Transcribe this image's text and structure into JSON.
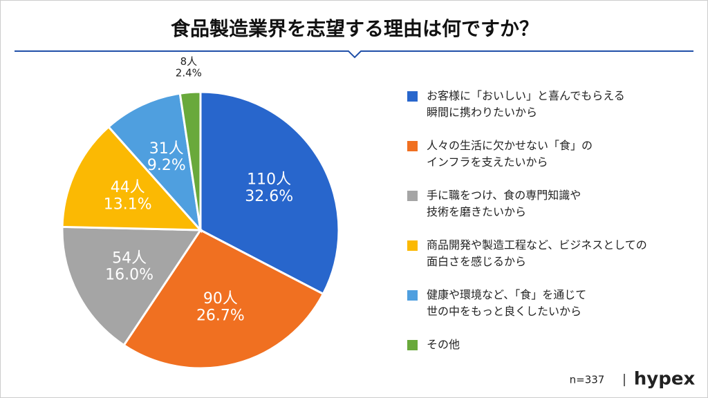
{
  "chart_data": {
    "type": "pie",
    "title": "食品製造業界を志望する理由は何ですか？",
    "categories": [
      "お客様に「おいしい」と喜んでもらえる\n瞬間に携わりたいから",
      "人々の生活に欠かせない「食」の\nインフラを支えたいから",
      "手に職をつけ、食の専門知識や\n技術を磨きたいから",
      "商品開発や製造工程など、ビジネスとしての\n面白さを感じるから",
      "健康や環境など、「食」を通じて\n世の中をもっと良くしたいから",
      "その他"
    ],
    "values": [
      110,
      90,
      54,
      44,
      31,
      8
    ],
    "value_labels": [
      "110人",
      "90人",
      "54人",
      "44人",
      "31人",
      "8人"
    ],
    "percentages": [
      32.6,
      26.7,
      16.0,
      13.1,
      9.2,
      2.4
    ],
    "percent_labels": [
      "32.6%",
      "26.7%",
      "16.0%",
      "13.1%",
      "9.2%",
      "2.4%"
    ],
    "colors": [
      "#2866cc",
      "#f07021",
      "#a5a5a5",
      "#fbb903",
      "#4f9fdf",
      "#69a93b"
    ],
    "note": "n=337",
    "brand": "hypex"
  }
}
